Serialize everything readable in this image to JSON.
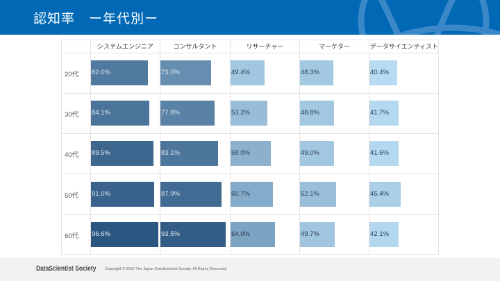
{
  "header": {
    "title": "認知率　ー年代別ー"
  },
  "table": {
    "columns": [
      "システムエンジニア",
      "コンサルタント",
      "リサーチャー",
      "マーケター",
      "データサイエンティスト"
    ],
    "rows": [
      {
        "label": "20代",
        "values": [
          "82.0%",
          "73.0%",
          "49.4%",
          "48.3%",
          "40.4%"
        ]
      },
      {
        "label": "30代",
        "values": [
          "84.1%",
          "77.8%",
          "53.2%",
          "48.8%",
          "41.7%"
        ]
      },
      {
        "label": "40代",
        "values": [
          "89.5%",
          "83.1%",
          "58.0%",
          "49.0%",
          "41.6%"
        ]
      },
      {
        "label": "50代",
        "values": [
          "91.0%",
          "87.9%",
          "60.7%",
          "52.1%",
          "45.4%"
        ]
      },
      {
        "label": "60代",
        "values": [
          "96.6%",
          "93.5%",
          "64.0%",
          "49.7%",
          "42.1%"
        ]
      }
    ]
  },
  "colors": {
    "header": "#0068b5",
    "bar_high": "#2a5580",
    "bar_low": "#b8dcf2"
  },
  "footer": {
    "brand": "DataScientist Society",
    "copyright": "Copyright © 2022 The Japan DataScientist Society. All Rights Reserved."
  }
}
